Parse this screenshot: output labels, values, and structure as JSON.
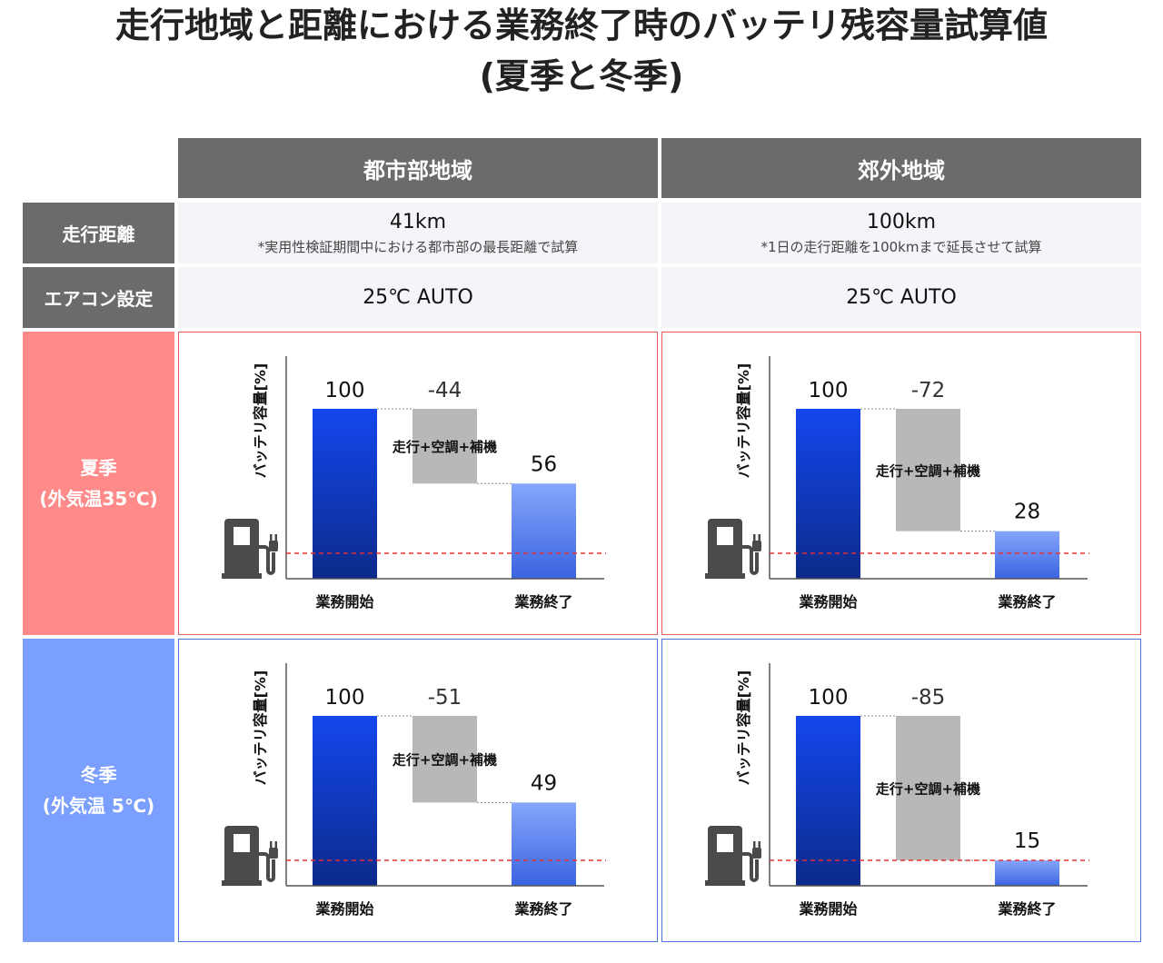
{
  "title": {
    "line1": "走行地域と距離における業務終了時のバッテリ残容量試算値",
    "line2": "(夏季と冬季)"
  },
  "columns": [
    {
      "label": "都市部地域",
      "distance": "41km",
      "distance_note": "*実用性検証期間中における都市部の最長距離で試算",
      "aircon": "25℃ AUTO"
    },
    {
      "label": "郊外地域",
      "distance": "100km",
      "distance_note": "*1日の走行距離を100kmまで延長させて試算",
      "aircon": "25℃ AUTO"
    }
  ],
  "rows": {
    "distance_label": "走行距離",
    "aircon_label": "エアコン設定",
    "summer": {
      "name": "夏季",
      "temp": "(外気温35℃)"
    },
    "winter": {
      "name": "冬季",
      "temp": "(外気温 5℃)"
    }
  },
  "chart_common": {
    "ylabel": "バッテリ容量[%]",
    "start_label": "業務開始",
    "end_label": "業務終了",
    "drop_label": "走行+空調+補機",
    "colors": {
      "start_bar": "#1a3fd6",
      "drop_bar": "#b8b8b8",
      "end_bar": "#6f95f5",
      "threshold_line": "#e53030",
      "axis": "#555555",
      "plug_icon": "#4a4a4a"
    }
  },
  "chart_data": [
    {
      "type": "bar",
      "subtype": "waterfall",
      "region": "都市部地域",
      "season": "夏季",
      "categories": [
        "業務開始",
        "走行+空調+補機",
        "業務終了"
      ],
      "values": [
        100,
        -44,
        56
      ],
      "value_labels": [
        "100",
        "-44",
        "56"
      ],
      "threshold": 15,
      "ylim": [
        0,
        100
      ]
    },
    {
      "type": "bar",
      "subtype": "waterfall",
      "region": "郊外地域",
      "season": "夏季",
      "categories": [
        "業務開始",
        "走行+空調+補機",
        "業務終了"
      ],
      "values": [
        100,
        -72,
        28
      ],
      "value_labels": [
        "100",
        "-72",
        "28"
      ],
      "threshold": 15,
      "ylim": [
        0,
        100
      ]
    },
    {
      "type": "bar",
      "subtype": "waterfall",
      "region": "都市部地域",
      "season": "冬季",
      "categories": [
        "業務開始",
        "走行+空調+補機",
        "業務終了"
      ],
      "values": [
        100,
        -51,
        49
      ],
      "value_labels": [
        "100",
        "-51",
        "49"
      ],
      "threshold": 15,
      "ylim": [
        0,
        100
      ]
    },
    {
      "type": "bar",
      "subtype": "waterfall",
      "region": "郊外地域",
      "season": "冬季",
      "categories": [
        "業務開始",
        "走行+空調+補機",
        "業務終了"
      ],
      "values": [
        100,
        -85,
        15
      ],
      "value_labels": [
        "100",
        "-85",
        "15"
      ],
      "threshold": 15,
      "ylim": [
        0,
        100
      ]
    }
  ]
}
